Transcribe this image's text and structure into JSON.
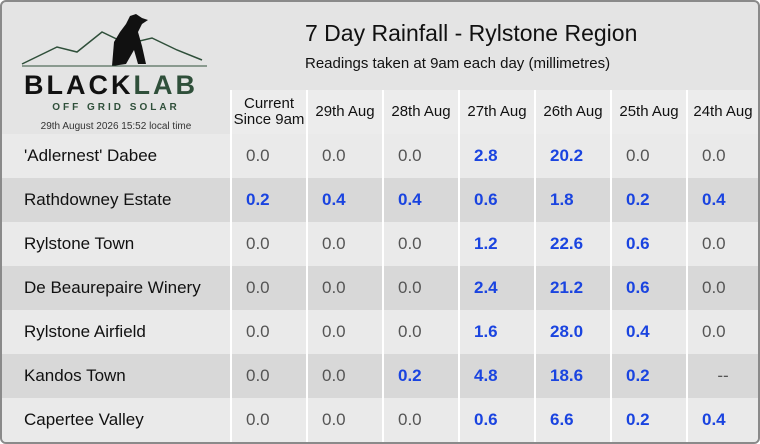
{
  "header": {
    "title": "7 Day Rainfall - Rylstone Region",
    "subtitle": "Readings taken at 9am each day (millimetres)"
  },
  "logo": {
    "brand_left": "BLACK",
    "brand_right": "LAB",
    "tagline": "OFF GRID SOLAR",
    "timestamp": "29th August 2026  15:52 local time"
  },
  "table": {
    "columns": [
      "Current Since 9am",
      "29th Aug",
      "28th Aug",
      "27th Aug",
      "26th Aug",
      "25th Aug",
      "24th Aug"
    ],
    "rows": [
      {
        "name": "'Adlernest' Dabee",
        "values": [
          "0.0",
          "0.0",
          "0.0",
          "2.8",
          "20.2",
          "0.0",
          "0.0"
        ]
      },
      {
        "name": "Rathdowney Estate",
        "values": [
          "0.2",
          "0.4",
          "0.4",
          "0.6",
          "1.8",
          "0.2",
          "0.4"
        ]
      },
      {
        "name": "Rylstone Town",
        "values": [
          "0.0",
          "0.0",
          "0.0",
          "1.2",
          "22.6",
          "0.6",
          "0.0"
        ]
      },
      {
        "name": "De Beaurepaire Winery",
        "values": [
          "0.0",
          "0.0",
          "0.0",
          "2.4",
          "21.2",
          "0.6",
          "0.0"
        ]
      },
      {
        "name": "Rylstone Airfield",
        "values": [
          "0.0",
          "0.0",
          "0.0",
          "1.6",
          "28.0",
          "0.4",
          "0.0"
        ]
      },
      {
        "name": "Kandos Town",
        "values": [
          "0.0",
          "0.0",
          "0.2",
          "4.8",
          "18.6",
          "0.2",
          "--"
        ]
      },
      {
        "name": "Capertee Valley",
        "values": [
          "0.0",
          "0.0",
          "0.0",
          "0.6",
          "6.6",
          "0.2",
          "0.4"
        ]
      }
    ]
  }
}
